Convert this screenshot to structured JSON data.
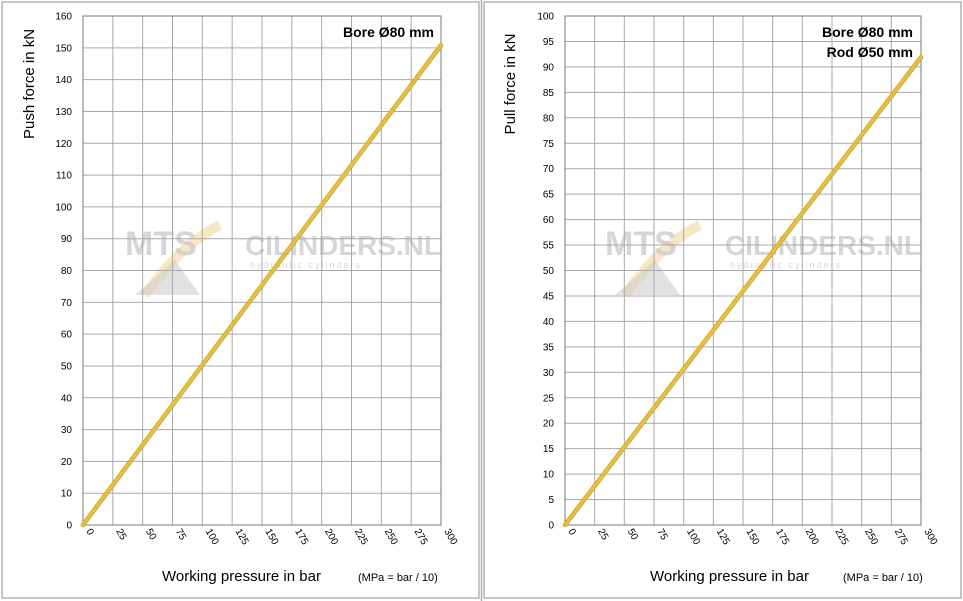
{
  "colors": {
    "series": "#e8c040",
    "series_edge": "#c8a028",
    "grid": "#a9a9a9",
    "panel_border": "#8c8c8c",
    "watermark": "#c9c9c9",
    "watermark_accent": "#f2d79a"
  },
  "watermark": {
    "brand_left": "MTS",
    "brand_right": "CILINDERS.NL",
    "tagline": "hydraulic cylinders"
  },
  "chart_data": [
    {
      "type": "line",
      "ylabel": "Push force in kN",
      "xlabel": "Working pressure in bar",
      "xlabel_note": "(MPa = bar / 10)",
      "annotations": [
        "Bore Ø80 mm"
      ],
      "xlim": [
        0,
        300
      ],
      "ylim": [
        0,
        160
      ],
      "xticks": [
        0,
        25,
        50,
        75,
        100,
        125,
        150,
        175,
        200,
        225,
        250,
        275,
        300
      ],
      "yticks": [
        0,
        10,
        20,
        30,
        40,
        50,
        60,
        70,
        80,
        90,
        100,
        110,
        120,
        130,
        140,
        150,
        160
      ],
      "grid": true,
      "series": [
        {
          "x": [
            0,
            300
          ],
          "values": [
            0,
            150.8
          ]
        }
      ]
    },
    {
      "type": "line",
      "ylabel": "Pull force in kN",
      "xlabel": "Working pressure in bar",
      "xlabel_note": "(MPa = bar / 10)",
      "annotations": [
        "Bore Ø80 mm",
        "Rod  Ø50 mm"
      ],
      "xlim": [
        0,
        300
      ],
      "ylim": [
        0,
        100
      ],
      "xticks": [
        0,
        25,
        50,
        75,
        100,
        125,
        150,
        175,
        200,
        225,
        250,
        275,
        300
      ],
      "yticks": [
        0,
        5,
        10,
        15,
        20,
        25,
        30,
        35,
        40,
        45,
        50,
        55,
        60,
        65,
        70,
        75,
        80,
        85,
        90,
        95,
        100
      ],
      "grid": true,
      "series": [
        {
          "x": [
            0,
            300
          ],
          "values": [
            0,
            91.9
          ]
        }
      ]
    }
  ]
}
